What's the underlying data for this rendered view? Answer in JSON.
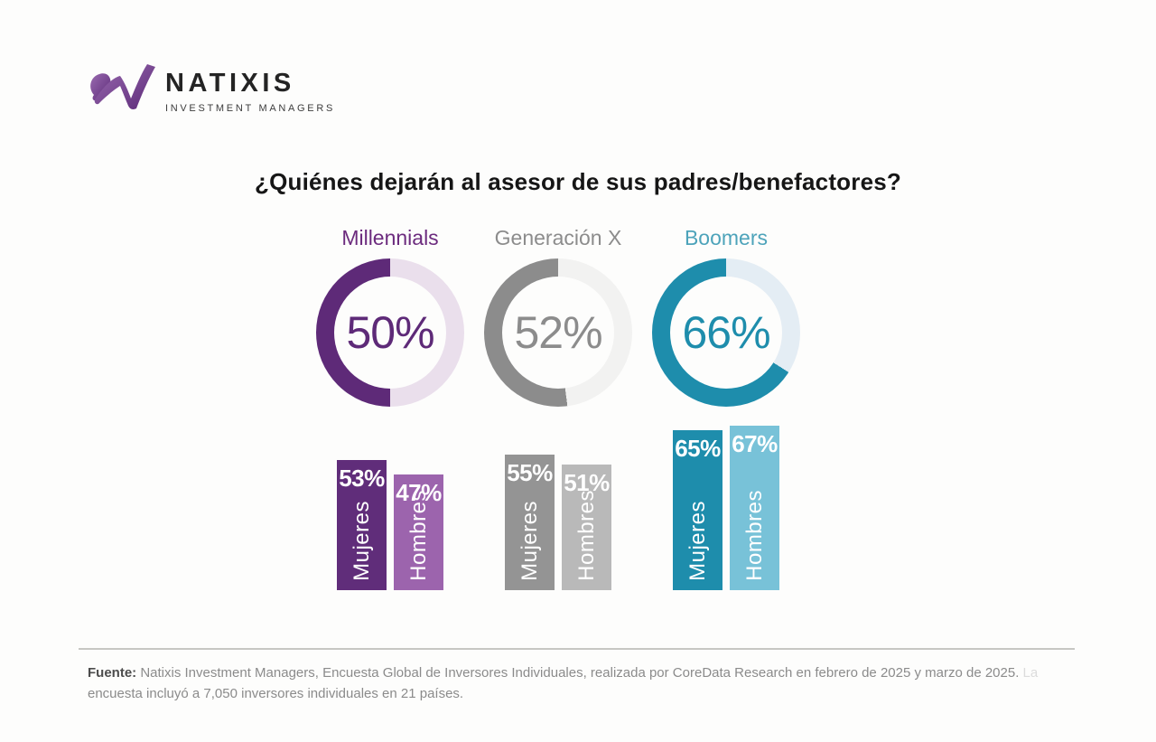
{
  "logo": {
    "brand": "NATIXIS",
    "subtitle": "INVESTMENT MANAGERS",
    "swoosh_color_dark": "#5c2a78",
    "swoosh_color_light": "#9a6bb0"
  },
  "title": "¿Quiénes dejarán al asesor de sus padres/benefactores?",
  "chart_data": {
    "type": "donut+bar",
    "title": "¿Quiénes dejarán al asesor de sus padres/benefactores?",
    "unit": "%",
    "legend_position": "none",
    "groups": [
      {
        "label": "Millennials",
        "donut_value": 50,
        "donut_display": "50%",
        "bars": [
          {
            "label": "Mujeres",
            "value": 53,
            "display": "53%"
          },
          {
            "label": "Hombres",
            "value": 47,
            "display": "47%"
          }
        ],
        "colors": {
          "fill": "#5e2a78",
          "track": "#eadfec",
          "label": "#6c2b7e",
          "bar_mujeres": "#602d7a",
          "bar_hombres": "#9c64ad"
        }
      },
      {
        "label": "Generación X",
        "donut_value": 52,
        "donut_display": "52%",
        "bars": [
          {
            "label": "Mujeres",
            "value": 55,
            "display": "55%"
          },
          {
            "label": "Hombres",
            "value": 51,
            "display": "51%"
          }
        ],
        "colors": {
          "fill": "#8c8c8c",
          "track": "#f2f2f1",
          "label": "#8c8c8c",
          "bar_mujeres": "#949494",
          "bar_hombres": "#b9b9b9"
        }
      },
      {
        "label": "Boomers",
        "donut_value": 66,
        "donut_display": "66%",
        "bars": [
          {
            "label": "Mujeres",
            "value": 65,
            "display": "65%"
          },
          {
            "label": "Hombres",
            "value": 67,
            "display": "67%"
          }
        ],
        "colors": {
          "fill": "#1e8dac",
          "track": "#e4edf4",
          "label": "#4da3ba",
          "bar_mujeres": "#1e8dac",
          "bar_hombres": "#78c2d8"
        }
      }
    ]
  },
  "footer": {
    "label": "Fuente:",
    "line1": "Natixis Investment Managers, Encuesta Global de Inversores Individuales, realizada por CoreData Research en febrero de 2025 y marzo de 2025.",
    "line1_faint": "La",
    "line2": "encuesta incluyó a 7,050 inversores individuales en 21 países."
  }
}
